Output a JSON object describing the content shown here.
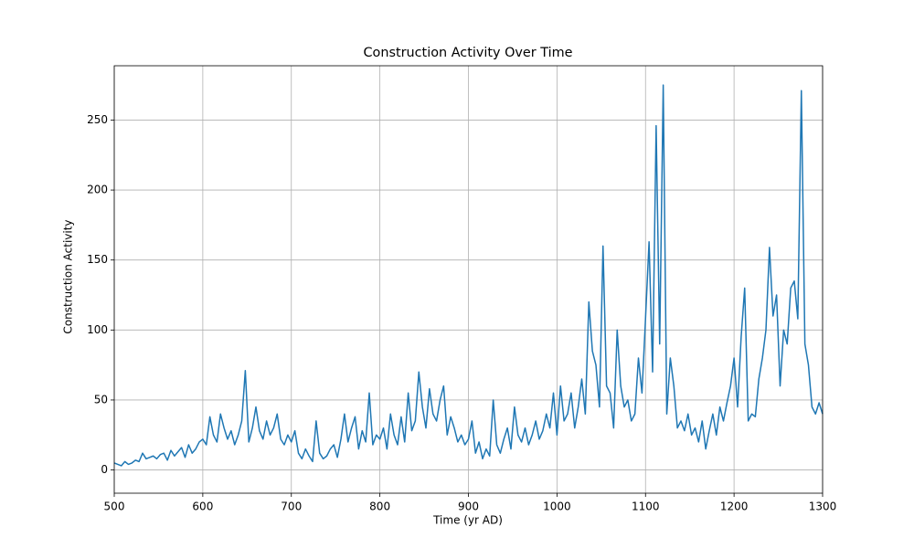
{
  "chart_data": {
    "type": "line",
    "title": "Construction Activity Over Time",
    "x_label": "Time (yr AD)",
    "y_label": "Construction Activity",
    "xlim": [
      500,
      1300
    ],
    "xticks": [
      500,
      600,
      700,
      800,
      900,
      1000,
      1100,
      1200,
      1300
    ],
    "ylim": [
      -16.6,
      288.8
    ],
    "yticks": [
      0,
      50,
      100,
      150,
      200,
      250
    ],
    "grid": true,
    "x": [
      500,
      504,
      508,
      512,
      516,
      520,
      524,
      528,
      532,
      536,
      540,
      544,
      548,
      552,
      556,
      560,
      564,
      568,
      572,
      576,
      580,
      584,
      588,
      592,
      596,
      600,
      604,
      608,
      612,
      616,
      620,
      624,
      628,
      632,
      636,
      640,
      644,
      648,
      652,
      656,
      660,
      664,
      668,
      672,
      676,
      680,
      684,
      688,
      692,
      696,
      700,
      704,
      708,
      712,
      716,
      720,
      724,
      728,
      732,
      736,
      740,
      744,
      748,
      752,
      756,
      760,
      764,
      768,
      772,
      776,
      780,
      784,
      788,
      792,
      796,
      800,
      804,
      808,
      812,
      816,
      820,
      824,
      828,
      832,
      836,
      840,
      844,
      848,
      852,
      856,
      860,
      864,
      868,
      872,
      876,
      880,
      884,
      888,
      892,
      896,
      900,
      904,
      908,
      912,
      916,
      920,
      924,
      928,
      932,
      936,
      940,
      944,
      948,
      952,
      956,
      960,
      964,
      968,
      972,
      976,
      980,
      984,
      988,
      992,
      996,
      1000,
      1004,
      1008,
      1012,
      1016,
      1020,
      1024,
      1028,
      1032,
      1036,
      1040,
      1044,
      1048,
      1052,
      1056,
      1060,
      1064,
      1068,
      1072,
      1076,
      1080,
      1084,
      1088,
      1092,
      1096,
      1100,
      1104,
      1108,
      1112,
      1116,
      1120,
      1124,
      1128,
      1132,
      1136,
      1140,
      1144,
      1148,
      1152,
      1156,
      1160,
      1164,
      1168,
      1172,
      1176,
      1180,
      1184,
      1188,
      1192,
      1196,
      1200,
      1204,
      1208,
      1212,
      1216,
      1220,
      1224,
      1228,
      1232,
      1236,
      1240,
      1244,
      1248,
      1252,
      1256,
      1260,
      1264,
      1268,
      1272,
      1276,
      1280,
      1284,
      1288,
      1292,
      1296,
      1300
    ],
    "series": [
      {
        "name": "Construction Activity",
        "color": "#1f77b4",
        "values": [
          5,
          4,
          3,
          6,
          4,
          5,
          7,
          6,
          12,
          8,
          9,
          10,
          8,
          11,
          12,
          7,
          14,
          10,
          13,
          16,
          9,
          18,
          12,
          15,
          20,
          22,
          18,
          38,
          25,
          20,
          40,
          30,
          22,
          28,
          18,
          25,
          35,
          71,
          20,
          30,
          45,
          28,
          22,
          35,
          25,
          30,
          40,
          22,
          18,
          25,
          20,
          28,
          12,
          8,
          15,
          10,
          6,
          35,
          12,
          8,
          10,
          15,
          18,
          9,
          22,
          40,
          20,
          30,
          38,
          15,
          28,
          20,
          55,
          18,
          25,
          22,
          30,
          15,
          40,
          25,
          18,
          38,
          20,
          55,
          28,
          35,
          70,
          45,
          30,
          58,
          40,
          35,
          50,
          60,
          25,
          38,
          30,
          20,
          25,
          18,
          22,
          35,
          12,
          20,
          8,
          15,
          10,
          50,
          18,
          12,
          22,
          30,
          15,
          45,
          25,
          20,
          30,
          18,
          25,
          35,
          22,
          28,
          40,
          30,
          55,
          25,
          60,
          35,
          40,
          55,
          30,
          45,
          65,
          40,
          120,
          85,
          75,
          45,
          160,
          60,
          55,
          30,
          100,
          60,
          45,
          50,
          35,
          40,
          80,
          55,
          108,
          163,
          70,
          246,
          90,
          275,
          40,
          80,
          60,
          30,
          35,
          28,
          40,
          25,
          30,
          20,
          35,
          15,
          28,
          40,
          25,
          45,
          35,
          48,
          60,
          80,
          45,
          95,
          130,
          35,
          40,
          38,
          65,
          80,
          100,
          159,
          110,
          125,
          60,
          100,
          90,
          130,
          135,
          108,
          271,
          90,
          75,
          45,
          40,
          48,
          40
        ]
      }
    ]
  }
}
